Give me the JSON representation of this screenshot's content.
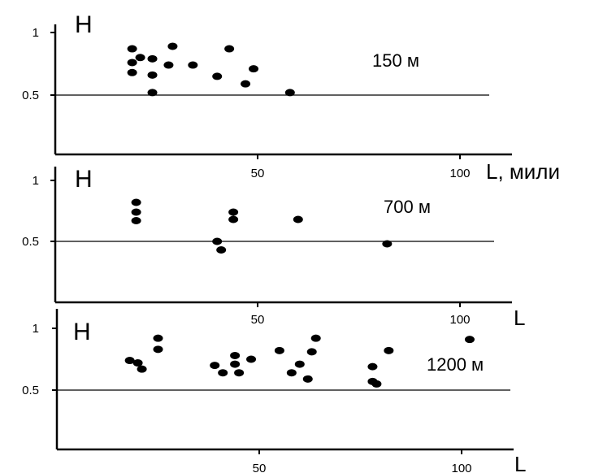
{
  "chart_data": [
    {
      "type": "scatter",
      "ylabel": "H",
      "xlabel": "L, мили",
      "annotation": "150 м",
      "y_ticks": [
        "1",
        "0.5"
      ],
      "x_ticks": [
        "50",
        "100"
      ],
      "xlim": [
        0,
        110
      ],
      "ylim": [
        0,
        1.1
      ],
      "reference_line_y": 0.5,
      "points": [
        {
          "x": 19,
          "y": 0.87
        },
        {
          "x": 19,
          "y": 0.76
        },
        {
          "x": 19,
          "y": 0.68
        },
        {
          "x": 21,
          "y": 0.8
        },
        {
          "x": 24,
          "y": 0.79
        },
        {
          "x": 24,
          "y": 0.66
        },
        {
          "x": 24,
          "y": 0.52
        },
        {
          "x": 28,
          "y": 0.74
        },
        {
          "x": 29,
          "y": 0.89
        },
        {
          "x": 34,
          "y": 0.74
        },
        {
          "x": 40,
          "y": 0.65
        },
        {
          "x": 43,
          "y": 0.87
        },
        {
          "x": 47,
          "y": 0.59
        },
        {
          "x": 49,
          "y": 0.71
        },
        {
          "x": 58,
          "y": 0.52
        }
      ]
    },
    {
      "type": "scatter",
      "ylabel": "H",
      "xlabel": "L",
      "annotation": "700 м",
      "y_ticks": [
        "1",
        "0.5"
      ],
      "x_ticks": [
        "50",
        "100"
      ],
      "xlim": [
        0,
        110
      ],
      "ylim": [
        0,
        1.1
      ],
      "reference_line_y": 0.5,
      "points": [
        {
          "x": 20,
          "y": 0.82
        },
        {
          "x": 20,
          "y": 0.74
        },
        {
          "x": 20,
          "y": 0.67
        },
        {
          "x": 40,
          "y": 0.5
        },
        {
          "x": 41,
          "y": 0.43
        },
        {
          "x": 44,
          "y": 0.74
        },
        {
          "x": 44,
          "y": 0.68
        },
        {
          "x": 60,
          "y": 0.68
        },
        {
          "x": 82,
          "y": 0.48
        }
      ]
    },
    {
      "type": "scatter",
      "ylabel": "H",
      "xlabel": "L",
      "annotation": "1200 м",
      "y_ticks": [
        "1",
        "0.5"
      ],
      "x_ticks": [
        "50",
        "100"
      ],
      "xlim": [
        0,
        110
      ],
      "ylim": [
        0,
        1.1
      ],
      "reference_line_y": 0.5,
      "points": [
        {
          "x": 18,
          "y": 0.74
        },
        {
          "x": 20,
          "y": 0.72
        },
        {
          "x": 21,
          "y": 0.67
        },
        {
          "x": 25,
          "y": 0.92
        },
        {
          "x": 25,
          "y": 0.83
        },
        {
          "x": 39,
          "y": 0.7
        },
        {
          "x": 41,
          "y": 0.64
        },
        {
          "x": 44,
          "y": 0.78
        },
        {
          "x": 44,
          "y": 0.71
        },
        {
          "x": 45,
          "y": 0.64
        },
        {
          "x": 48,
          "y": 0.75
        },
        {
          "x": 55,
          "y": 0.82
        },
        {
          "x": 58,
          "y": 0.64
        },
        {
          "x": 60,
          "y": 0.71
        },
        {
          "x": 62,
          "y": 0.59
        },
        {
          "x": 63,
          "y": 0.81
        },
        {
          "x": 64,
          "y": 0.92
        },
        {
          "x": 78,
          "y": 0.69
        },
        {
          "x": 78,
          "y": 0.57
        },
        {
          "x": 79,
          "y": 0.55
        },
        {
          "x": 82,
          "y": 0.82
        },
        {
          "x": 102,
          "y": 0.91
        }
      ]
    }
  ]
}
